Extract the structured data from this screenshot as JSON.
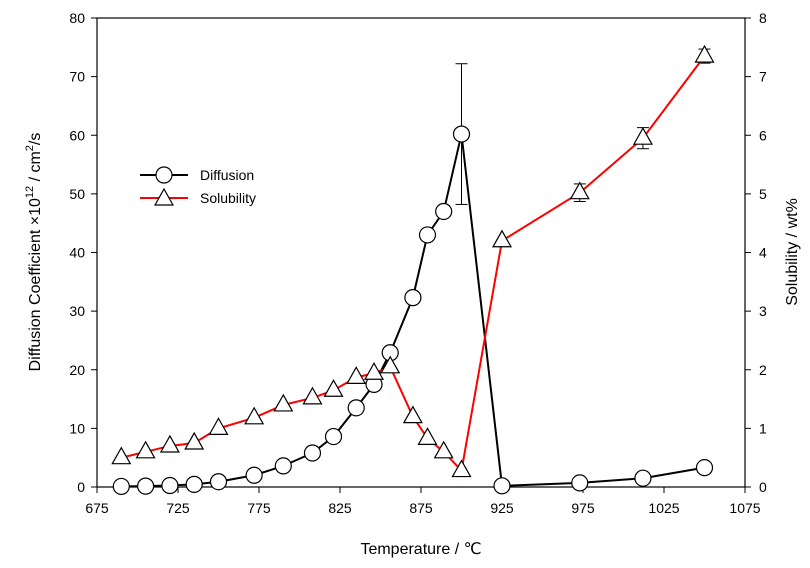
{
  "chart_data": {
    "type": "line",
    "xlabel": "Temperature / ℃",
    "ylabel_left": "Diffusion Coefficient  ×10",
    "ylabel_left_exp": "12",
    "ylabel_left_unit": " / cm",
    "ylabel_left_unit_exp": "2",
    "ylabel_left_tail": "/s",
    "ylabel_right": "Solubility / wt%",
    "xlim": [
      675,
      1075
    ],
    "xticks": [
      675,
      725,
      775,
      825,
      875,
      925,
      975,
      1025,
      1075
    ],
    "ylim_left": [
      0,
      80
    ],
    "yticks_left": [
      0,
      10,
      20,
      30,
      40,
      50,
      60,
      70,
      80
    ],
    "ylim_right": [
      0,
      8
    ],
    "yticks_right": [
      0,
      1,
      2,
      3,
      4,
      5,
      6,
      7,
      8
    ],
    "grid": false,
    "legend_position": "upper-left",
    "series": [
      {
        "name": "Diffusion",
        "axis": "left",
        "marker": "circle",
        "color": "#000000",
        "x": [
          690,
          705,
          720,
          735,
          750,
          772,
          790,
          808,
          821,
          835,
          846,
          856,
          870,
          879,
          889,
          900,
          925,
          973,
          1012,
          1050
        ],
        "y": [
          0.1,
          0.15,
          0.25,
          0.45,
          0.9,
          2.0,
          3.6,
          5.8,
          8.6,
          13.5,
          17.5,
          22.9,
          32.3,
          43.0,
          47.0,
          60.2,
          0.2,
          0.7,
          1.5,
          3.3
        ],
        "error": [
          0,
          0,
          0,
          0,
          0,
          0,
          0,
          0,
          0,
          0,
          0,
          0,
          0,
          0.8,
          0.6,
          12.0,
          0,
          0,
          0,
          0
        ]
      },
      {
        "name": "Solubility",
        "axis": "right",
        "marker": "triangle",
        "color": "#ff0000",
        "x": [
          690,
          705,
          720,
          735,
          750,
          772,
          790,
          808,
          821,
          835,
          846,
          856,
          870,
          879,
          889,
          900,
          925,
          973,
          1012,
          1050
        ],
        "y": [
          0.5,
          0.6,
          0.7,
          0.75,
          1.0,
          1.18,
          1.4,
          1.52,
          1.65,
          1.87,
          1.94,
          2.05,
          1.2,
          0.83,
          0.6,
          0.28,
          4.2,
          5.02,
          5.95,
          7.35
        ],
        "error": [
          0,
          0,
          0,
          0,
          0,
          0,
          0,
          0,
          0,
          0,
          0,
          0,
          0,
          0,
          0,
          0,
          0,
          0.15,
          0.18,
          0.12
        ]
      }
    ]
  }
}
